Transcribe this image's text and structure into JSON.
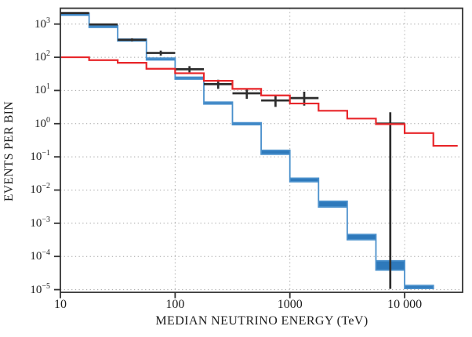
{
  "figure": {
    "x_axis_title": "MEDIAN NEUTRINO ENERGY (TeV)",
    "y_axis_title": "EVENTS PER BIN"
  },
  "colors": {
    "astro_band_fill": "#2e79bb",
    "astro_band_edge": "#4a90cc",
    "atmospheric_line": "#e8262a",
    "data_points": "#2d2d2d",
    "grid": "#a6a6a6",
    "frame": "#333333",
    "tick": "#333333"
  },
  "chart_data": {
    "type": "line",
    "subtype": "log-log step histograms with data points",
    "title": "",
    "x_axis": {
      "label": "MEDIAN NEUTRINO ENERGY (TeV)",
      "scale": "log",
      "lim": [
        10,
        32000
      ],
      "tick_values": [
        10,
        100,
        1000,
        10000
      ],
      "tick_labels": [
        "10",
        "100",
        "1000",
        "10 000"
      ]
    },
    "y_axis": {
      "label": "EVENTS PER BIN",
      "scale": "log",
      "lim": [
        8.3e-06,
        3000
      ],
      "tick_exponents": [
        3,
        2,
        1,
        0,
        -1,
        -2,
        -3,
        -4,
        -5
      ]
    },
    "grid": {
      "style": "dotted",
      "horizontal_at_exponents": [
        3,
        2,
        1,
        0,
        -1,
        -2,
        -3,
        -4,
        -5
      ],
      "vertical_at_values": [
        100,
        1000,
        10000
      ]
    },
    "bin_edges_tev": [
      10,
      17.8,
      31.6,
      56.2,
      100,
      178,
      316,
      562,
      1000,
      1778,
      3162,
      5623,
      10000,
      17800,
      29000
    ],
    "series": [
      {
        "name": "blue-step-band",
        "legend": "",
        "style": "step-band",
        "n_bins": 13,
        "lo": [
          1900,
          820,
          318,
          85,
          22.5,
          4.0,
          0.95,
          0.12,
          0.0178,
          0.0031,
          0.00032,
          3.9e-05,
          1.08e-05
        ],
        "hi": [
          2060,
          872,
          345,
          92,
          24.5,
          4.35,
          1.04,
          0.158,
          0.0228,
          0.0046,
          0.00046,
          7.4e-05,
          1.33e-05
        ]
      },
      {
        "name": "red-step-line",
        "legend": "",
        "style": "step-line",
        "n_bins": 14,
        "values": [
          100,
          82,
          68,
          45,
          33,
          19.5,
          11.2,
          7.1,
          4.05,
          2.45,
          1.42,
          0.97,
          0.52,
          0.215
        ]
      },
      {
        "name": "black-data-points",
        "legend": "",
        "style": "bin-crosses",
        "points": [
          {
            "bin_index": 0,
            "value": 2150,
            "err_lo": 2060,
            "err_hi": 2250
          },
          {
            "bin_index": 1,
            "value": 975,
            "err_lo": 915,
            "err_hi": 1040
          },
          {
            "bin_index": 2,
            "value": 335,
            "err_lo": 303,
            "err_hi": 372
          },
          {
            "bin_index": 3,
            "value": 135,
            "err_lo": 113,
            "err_hi": 158
          },
          {
            "bin_index": 4,
            "value": 43.5,
            "err_lo": 35,
            "err_hi": 54
          },
          {
            "bin_index": 5,
            "value": 15.5,
            "err_lo": 11.2,
            "err_hi": 21
          },
          {
            "bin_index": 6,
            "value": 8.2,
            "err_lo": 5.6,
            "err_hi": 11.3
          },
          {
            "bin_index": 7,
            "value": 5.0,
            "err_lo": 3.2,
            "err_hi": 7.1
          },
          {
            "bin_index": 8,
            "value": 5.9,
            "err_lo": 3.5,
            "err_hi": 9.2
          },
          {
            "bin_index": 11,
            "value": 1.0,
            "err_lo": 1.05e-05,
            "err_hi": 2.2
          }
        ]
      }
    ]
  }
}
